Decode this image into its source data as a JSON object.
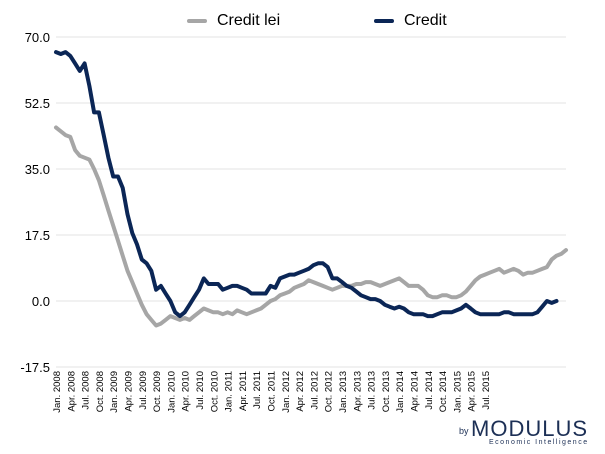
{
  "chart_data": {
    "type": "line",
    "title": "",
    "xlabel": "",
    "ylabel": "",
    "ylim": [
      -17.5,
      70
    ],
    "yticks": [
      "70.0",
      "52.5",
      "35.0",
      "17.5",
      "0.0",
      "-17.5"
    ],
    "y_tick_values": [
      70,
      52.5,
      35,
      17.5,
      0,
      -17.5
    ],
    "grid": "horizontal",
    "legend_position": "top",
    "x_tick_labels": [
      "Jan. 2008",
      "Apr. 2008",
      "Jul. 2008",
      "Oct. 2008",
      "Jan. 2009",
      "Apr. 2009",
      "Jul. 2009",
      "Oct. 2009",
      "Jan. 2010",
      "Apr. 2010",
      "Jul. 2010",
      "Oct. 2010",
      "Jan. 2011",
      "Apr. 2011",
      "Jul. 2011",
      "Oct. 2011",
      "Jan. 2012",
      "Apr. 2012",
      "Jul. 2012",
      "Oct. 2012",
      "Jan. 2013",
      "Apr. 2013",
      "Jul. 2013",
      "Oct. 2013",
      "Jan. 2014",
      "Apr. 2014",
      "Jul. 2014",
      "Oct. 2014",
      "Jan. 2015",
      "Apr. 2015",
      "Jul. 2015"
    ],
    "series": [
      {
        "name": "Credit lei",
        "color": "#a6a6a6",
        "values": [
          46,
          45,
          44,
          43.5,
          40,
          38.5,
          38,
          37.5,
          35,
          32,
          28,
          24,
          20,
          16,
          12,
          8,
          5,
          2,
          -1,
          -3.5,
          -5,
          -6.5,
          -6,
          -5,
          -4,
          -4.5,
          -5,
          -4.5,
          -5,
          -4,
          -3,
          -2,
          -2.5,
          -3,
          -3,
          -3.5,
          -3,
          -3.5,
          -2.5,
          -3,
          -3.5,
          -3,
          -2.5,
          -2,
          -1,
          0,
          0.5,
          1.5,
          2,
          2.5,
          3.5,
          4,
          4.5,
          5.5,
          5,
          4.5,
          4,
          3.5,
          3,
          3.5,
          4,
          4,
          4,
          4.5,
          4.5,
          5,
          5,
          4.5,
          4,
          4.5,
          5,
          5.5,
          6,
          5,
          4,
          4,
          4,
          3,
          1.5,
          1,
          1,
          1.5,
          1.5,
          1,
          1,
          1.5,
          2.5,
          4,
          5.5,
          6.5,
          7,
          7.5,
          8,
          8.5,
          7.5,
          8,
          8.5,
          8,
          7,
          7.5,
          7.5,
          8,
          8.5,
          9,
          11,
          12,
          12.5,
          13.5
        ]
      },
      {
        "name": "Credit",
        "color": "#0b2656",
        "values": [
          66,
          65.5,
          66,
          65,
          63,
          61,
          63,
          57,
          50,
          50,
          44,
          38,
          33,
          33,
          30,
          23,
          18,
          15,
          11,
          10,
          8,
          3,
          4,
          2,
          0,
          -3,
          -4,
          -3,
          -1,
          1,
          3,
          6,
          4.5,
          4.5,
          4.5,
          3,
          3.5,
          4,
          4,
          3.5,
          3,
          2,
          2,
          2,
          2,
          4,
          3.5,
          6,
          6.5,
          7,
          7,
          7.5,
          8,
          8.5,
          9.5,
          10,
          10,
          9,
          6,
          6,
          5,
          4,
          3.5,
          2.5,
          1.5,
          1,
          0.5,
          0.5,
          0,
          -1,
          -1.5,
          -2,
          -1.5,
          -2,
          -3,
          -3.5,
          -3.5,
          -3.5,
          -4,
          -4,
          -3.5,
          -3,
          -3,
          -3,
          -2.5,
          -2,
          -1,
          -2,
          -3,
          -3.5,
          -3.5,
          -3.5,
          -3.5,
          -3.5,
          -3,
          -3,
          -3.5,
          -3.5,
          -3.5,
          -3.5,
          -3.5,
          -3,
          -1.5,
          0,
          -0.5,
          0
        ]
      }
    ]
  },
  "legend": {
    "items": [
      {
        "label": "Credit lei",
        "color": "#a6a6a6"
      },
      {
        "label": "Credit",
        "color": "#0b2656"
      }
    ]
  },
  "logo": {
    "by": "by",
    "wordmark": "MODULUS",
    "tagline": "Economic Intelligence"
  }
}
